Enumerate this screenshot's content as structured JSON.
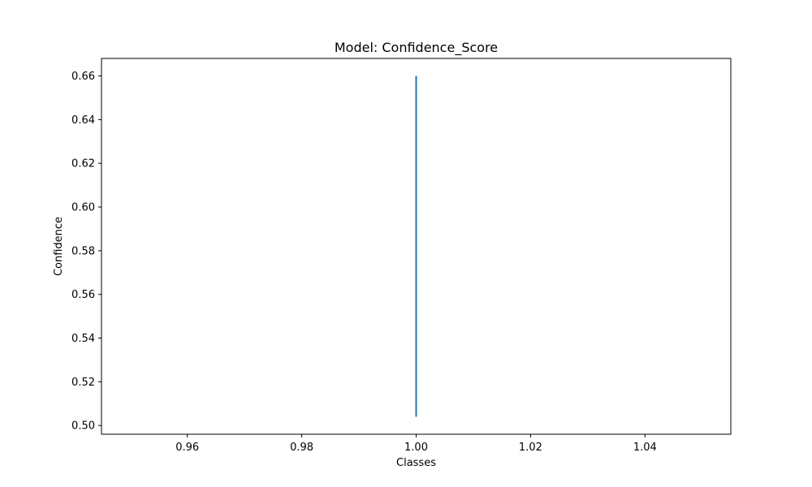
{
  "chart_data": {
    "type": "line",
    "title": "Model: Confidence_Score",
    "xlabel": "Classes",
    "ylabel": "Confidence",
    "xlim": [
      0.945,
      1.055
    ],
    "ylim": [
      0.496,
      0.668
    ],
    "xticks": [
      0.96,
      0.98,
      1.0,
      1.02,
      1.04
    ],
    "xtick_labels": [
      "0.96",
      "0.98",
      "1.00",
      "1.02",
      "1.04"
    ],
    "yticks": [
      0.5,
      0.52,
      0.54,
      0.56,
      0.58,
      0.6,
      0.62,
      0.64,
      0.66
    ],
    "ytick_labels": [
      "0.50",
      "0.52",
      "0.54",
      "0.56",
      "0.58",
      "0.60",
      "0.62",
      "0.64",
      "0.66"
    ],
    "grid": false,
    "series": [
      {
        "x": [
          1.0,
          1.0
        ],
        "y": [
          0.504,
          0.66
        ],
        "color": "#1f77b4"
      }
    ]
  }
}
